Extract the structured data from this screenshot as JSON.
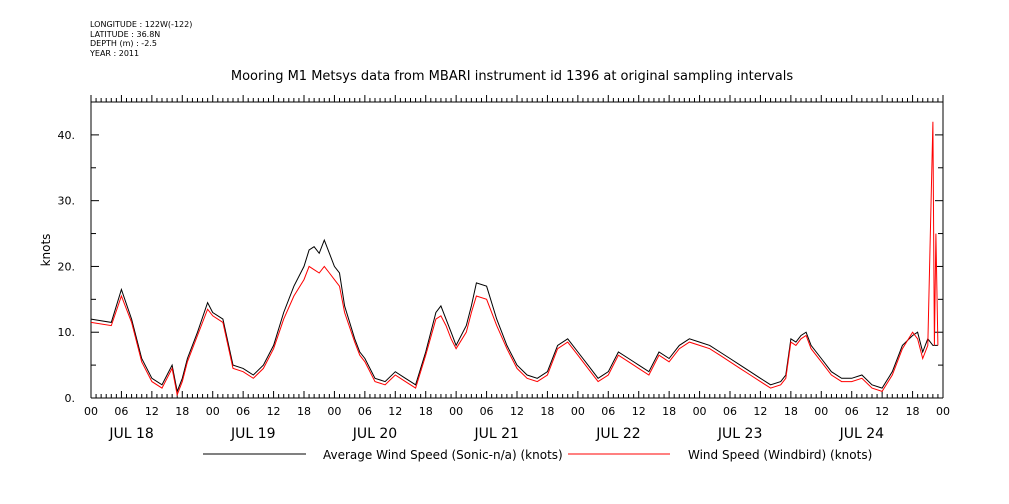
{
  "meta": {
    "longitude": "LONGITUDE : 122W(-122)",
    "latitude": "LATITUDE : 36.8N",
    "depth": "DEPTH (m) : -2.5",
    "year": "YEAR : 2011"
  },
  "chart_data": {
    "type": "line",
    "title": "Mooring M1 Metsys data from MBARI instrument id 1396 at original sampling intervals",
    "ylabel": "knots",
    "xlabel": "",
    "ylim": [
      0,
      45
    ],
    "xlim_hours": [
      0,
      168
    ],
    "y_ticks": [
      "0.",
      "10.",
      "20.",
      "30.",
      "40."
    ],
    "x_hour_ticks": [
      "00",
      "06",
      "12",
      "18",
      "00",
      "06",
      "12",
      "18",
      "00",
      "06",
      "12",
      "18",
      "00",
      "06",
      "12",
      "18",
      "00",
      "06",
      "12",
      "18",
      "00",
      "06",
      "12",
      "18",
      "00",
      "06",
      "12",
      "18",
      "00"
    ],
    "x_day_labels": [
      "JUL 18",
      "JUL 19",
      "JUL 20",
      "JUL 21",
      "JUL 22",
      "JUL 23",
      "JUL 24"
    ],
    "legend_placement": "bottom",
    "series": [
      {
        "name": "Average Wind Speed (Sonic-n/a) (knots)",
        "color": "#000000",
        "x_hours": [
          0,
          4,
          6,
          8,
          10,
          12,
          14,
          16,
          17,
          18,
          19,
          21,
          23,
          24,
          26,
          28,
          30,
          32,
          34,
          36,
          38,
          40,
          42,
          43,
          44,
          45,
          46,
          47,
          48,
          49,
          50,
          52,
          53,
          54,
          56,
          58,
          60,
          62,
          64,
          66,
          68,
          69,
          70,
          71,
          72,
          74,
          75,
          76,
          78,
          80,
          82,
          84,
          86,
          88,
          90,
          92,
          94,
          96,
          98,
          100,
          102,
          104,
          106,
          108,
          110,
          112,
          114,
          116,
          118,
          120,
          122,
          124,
          126,
          128,
          130,
          132,
          134,
          136,
          137,
          138,
          139,
          140,
          141,
          142,
          144,
          146,
          148,
          150,
          152,
          154,
          156,
          158,
          160,
          162,
          163,
          164,
          165,
          166,
          167
        ],
        "values": [
          12,
          11.5,
          16.5,
          12,
          6,
          3,
          2,
          5,
          1,
          3,
          6,
          10,
          14.5,
          13,
          12,
          5,
          4.5,
          3.5,
          5,
          8,
          13,
          17,
          20,
          22.5,
          23,
          22,
          24,
          22,
          20,
          19,
          14,
          9,
          7,
          6,
          3,
          2.5,
          4,
          3,
          2,
          7,
          13,
          14,
          12,
          10,
          8,
          11,
          14,
          17.5,
          17,
          12,
          8,
          5,
          3.5,
          3,
          4,
          8,
          9,
          7,
          5,
          3,
          4,
          7,
          6,
          5,
          4,
          7,
          6,
          8,
          9,
          8.5,
          8,
          7,
          6,
          5,
          4,
          3,
          2,
          2.5,
          3.5,
          9,
          8.5,
          9.5,
          10,
          8,
          6,
          4,
          3,
          3,
          3.5,
          2,
          1.5,
          4,
          8,
          9.5,
          10,
          7,
          9,
          8,
          8
        ]
      },
      {
        "name": "Wind Speed (Windbird) (knots)",
        "color": "#ff0000",
        "x_hours": [
          0,
          4,
          6,
          8,
          10,
          12,
          14,
          16,
          17,
          18,
          19,
          21,
          23,
          24,
          26,
          28,
          30,
          32,
          34,
          36,
          38,
          40,
          42,
          43,
          44,
          45,
          46,
          47,
          48,
          49,
          50,
          52,
          53,
          54,
          56,
          58,
          60,
          62,
          64,
          66,
          68,
          69,
          70,
          71,
          72,
          74,
          75,
          76,
          78,
          80,
          82,
          84,
          86,
          88,
          90,
          92,
          94,
          96,
          98,
          100,
          102,
          104,
          106,
          108,
          110,
          112,
          114,
          116,
          118,
          120,
          122,
          124,
          126,
          128,
          130,
          132,
          134,
          136,
          137,
          138,
          139,
          140,
          141,
          142,
          144,
          146,
          148,
          150,
          152,
          154,
          156,
          158,
          160,
          162,
          163,
          164,
          165,
          166,
          166.3,
          166.6,
          167
        ],
        "values": [
          11.5,
          11,
          15.5,
          11.5,
          5.5,
          2.5,
          1.5,
          4.5,
          0.5,
          2.5,
          5.5,
          9.5,
          13.5,
          12.5,
          11.5,
          4.5,
          4,
          3,
          4.5,
          7.5,
          12,
          15.5,
          18,
          20,
          19.5,
          19,
          20,
          19,
          18,
          17,
          13,
          8.5,
          6.5,
          5.5,
          2.5,
          2,
          3.5,
          2.5,
          1.5,
          6.5,
          12,
          12.5,
          11,
          9,
          7.5,
          10,
          13,
          15.5,
          15,
          11,
          7.5,
          4.5,
          3,
          2.5,
          3.5,
          7.5,
          8.5,
          6.5,
          4.5,
          2.5,
          3.5,
          6.5,
          5.5,
          4.5,
          3.5,
          6.5,
          5.5,
          7.5,
          8.5,
          8,
          7.5,
          6.5,
          5.5,
          4.5,
          3.5,
          2.5,
          1.5,
          2,
          3,
          8.5,
          8,
          9,
          9.5,
          7.5,
          5.5,
          3.5,
          2.5,
          2.5,
          3,
          1.5,
          1,
          3.5,
          7.5,
          10,
          9,
          6,
          8,
          42,
          8,
          25,
          8
        ]
      }
    ]
  }
}
